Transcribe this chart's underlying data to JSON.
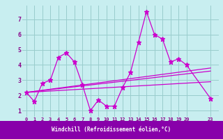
{
  "title": "",
  "xlabel": "Windchill (Refroidissement éolien,°C)",
  "bg_color": "#c8eef0",
  "grid_color": "#99cccc",
  "line_color": "#cc00cc",
  "xlabel_bg": "#8800aa",
  "xlabel_fg": "#ffffff",
  "tick_color": "#880088",
  "x_ticks": [
    0,
    1,
    2,
    3,
    4,
    5,
    6,
    7,
    8,
    9,
    10,
    11,
    12,
    13,
    14,
    15,
    16,
    17,
    18,
    19,
    20,
    23
  ],
  "xlim": [
    -0.5,
    24.0
  ],
  "ylim": [
    0.6,
    7.9
  ],
  "y_ticks": [
    1,
    2,
    3,
    4,
    5,
    6,
    7
  ],
  "series": [
    {
      "x": [
        0,
        1,
        2,
        3,
        4,
        5,
        6,
        7,
        8,
        9,
        10,
        11,
        12,
        13,
        14,
        15,
        16,
        17,
        18,
        19,
        20,
        23
      ],
      "y": [
        2.2,
        1.6,
        2.8,
        3.0,
        4.5,
        4.8,
        4.2,
        2.7,
        1.0,
        1.7,
        1.3,
        1.3,
        2.5,
        3.5,
        5.5,
        7.5,
        6.0,
        5.7,
        4.2,
        4.4,
        4.0,
        1.8
      ]
    },
    {
      "x": [
        0,
        23
      ],
      "y": [
        2.2,
        3.8
      ]
    },
    {
      "x": [
        0,
        23
      ],
      "y": [
        2.2,
        3.6
      ]
    },
    {
      "x": [
        0,
        23
      ],
      "y": [
        2.2,
        2.9
      ]
    }
  ]
}
